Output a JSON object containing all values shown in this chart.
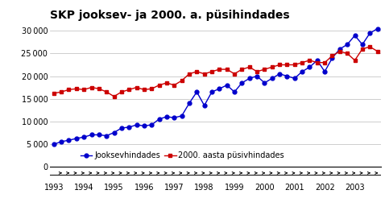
{
  "title": "SKP jooksev- ja 2000. a. püsihindades",
  "jooksev": [
    4900,
    5500,
    5800,
    6200,
    6500,
    7000,
    7000,
    6800,
    7500,
    8500,
    8700,
    9200,
    9000,
    9200,
    10500,
    11000,
    10800,
    11200,
    14000,
    16500,
    13500,
    16500,
    17200,
    18000,
    16500,
    18500,
    19500,
    20000,
    18500,
    19500,
    20500,
    20000,
    19500,
    21000,
    22000,
    23500,
    21000,
    24000,
    26000,
    27000,
    29000,
    27000,
    29500,
    30500
  ],
  "pusiv": [
    16200,
    16500,
    17000,
    17200,
    17000,
    17500,
    17200,
    16500,
    15500,
    16500,
    17000,
    17500,
    17000,
    17200,
    18000,
    18500,
    18000,
    19000,
    20500,
    21000,
    20500,
    21000,
    21500,
    21500,
    20500,
    21500,
    22000,
    21000,
    21500,
    22000,
    22500,
    22500,
    22500,
    23000,
    23500,
    23000,
    23000,
    24500,
    25500,
    25000,
    23500,
    26000,
    26500,
    25500
  ],
  "year_labels": [
    "1993",
    "1994",
    "1995",
    "1996",
    "1997",
    "1998",
    "1999",
    "2000",
    "2001",
    "2002",
    "2003"
  ],
  "year_positions": [
    0,
    4,
    8,
    12,
    16,
    20,
    24,
    28,
    32,
    36,
    40
  ],
  "blue_color": "#0000cc",
  "red_color": "#cc0000",
  "ylim": [
    0,
    32000
  ],
  "yticks": [
    0,
    5000,
    10000,
    15000,
    20000,
    25000,
    30000
  ],
  "legend_jooksev": "Jooksevhindades",
  "legend_pusiv": "2000. aasta püsivhindades",
  "background_color": "#ffffff",
  "title_fontsize": 10,
  "tick_fontsize": 7,
  "legend_fontsize": 7
}
